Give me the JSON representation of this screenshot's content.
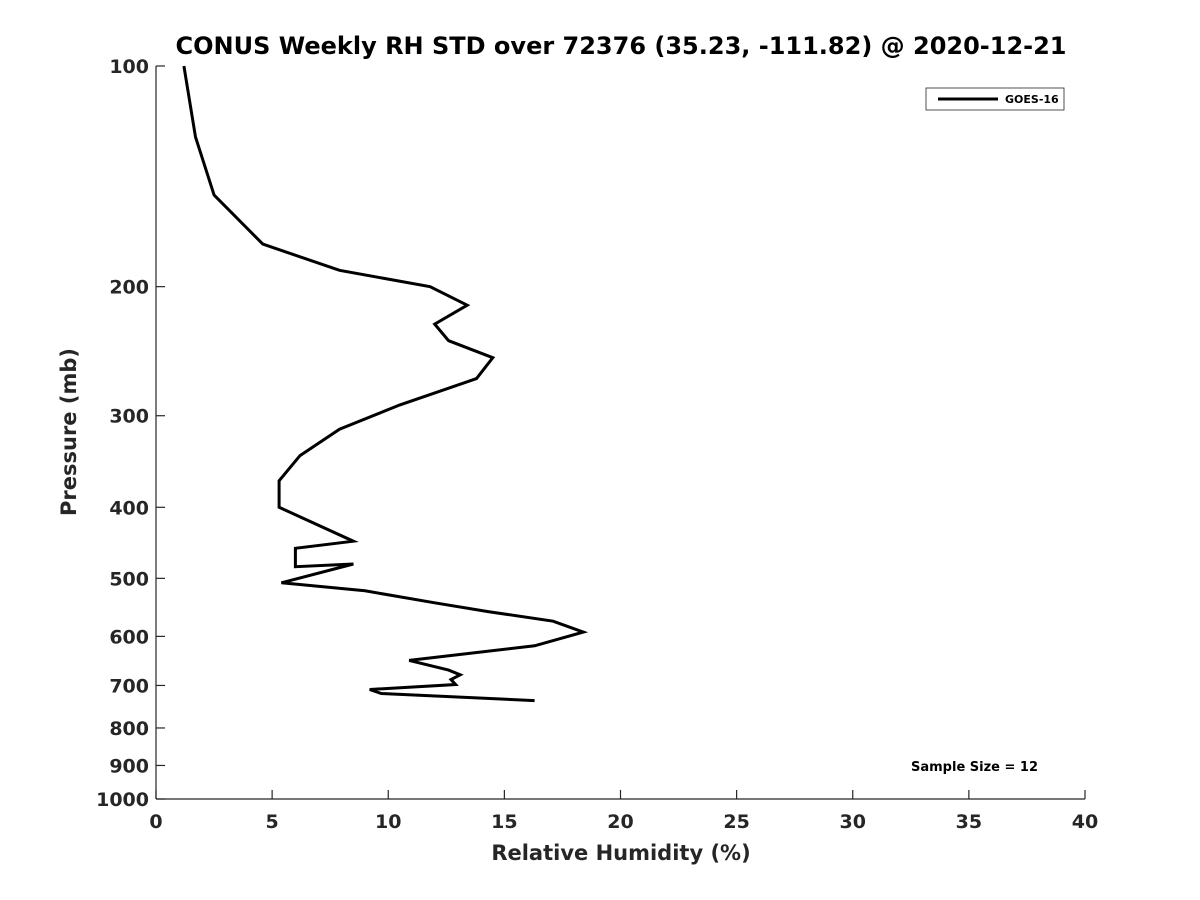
{
  "chart_data": {
    "type": "line",
    "title": "CONUS Weekly RH STD over 72376 (35.23, -111.82) @ 2020-12-21",
    "xlabel": "Relative Humidity (%)",
    "ylabel": "Pressure (mb)",
    "xlim": [
      0,
      40
    ],
    "ylim": [
      100,
      1000
    ],
    "y_scale": "log",
    "y_inverted": true,
    "x_ticks": [
      0,
      5,
      10,
      15,
      20,
      25,
      30,
      35,
      40
    ],
    "y_ticks": [
      100,
      200,
      300,
      400,
      500,
      600,
      700,
      800,
      900,
      1000
    ],
    "grid": false,
    "legend": {
      "position": "top-right",
      "entries": [
        "GOES-16"
      ]
    },
    "annotation": "Sample Size = 12",
    "series": [
      {
        "name": "GOES-16",
        "color": "#000000",
        "points": [
          [
            1.2,
            100
          ],
          [
            1.7,
            125
          ],
          [
            2.5,
            150
          ],
          [
            4.6,
            175
          ],
          [
            7.9,
            190
          ],
          [
            11.8,
            200
          ],
          [
            13.4,
            212
          ],
          [
            12.0,
            225
          ],
          [
            12.6,
            237
          ],
          [
            14.5,
            250
          ],
          [
            13.8,
            267
          ],
          [
            10.5,
            290
          ],
          [
            7.9,
            313
          ],
          [
            6.2,
            340
          ],
          [
            5.3,
            368
          ],
          [
            5.3,
            400
          ],
          [
            8.5,
            445
          ],
          [
            6.0,
            455
          ],
          [
            6.0,
            482
          ],
          [
            8.5,
            478
          ],
          [
            5.4,
            507
          ],
          [
            9.0,
            520
          ],
          [
            12.0,
            540
          ],
          [
            14.3,
            555
          ],
          [
            17.1,
            572
          ],
          [
            18.4,
            592
          ],
          [
            16.3,
            618
          ],
          [
            10.9,
            647
          ],
          [
            12.6,
            667
          ],
          [
            13.1,
            677
          ],
          [
            12.7,
            687
          ],
          [
            12.9,
            698
          ],
          [
            9.2,
            709
          ],
          [
            9.7,
            718
          ],
          [
            16.3,
            734
          ]
        ]
      }
    ]
  }
}
